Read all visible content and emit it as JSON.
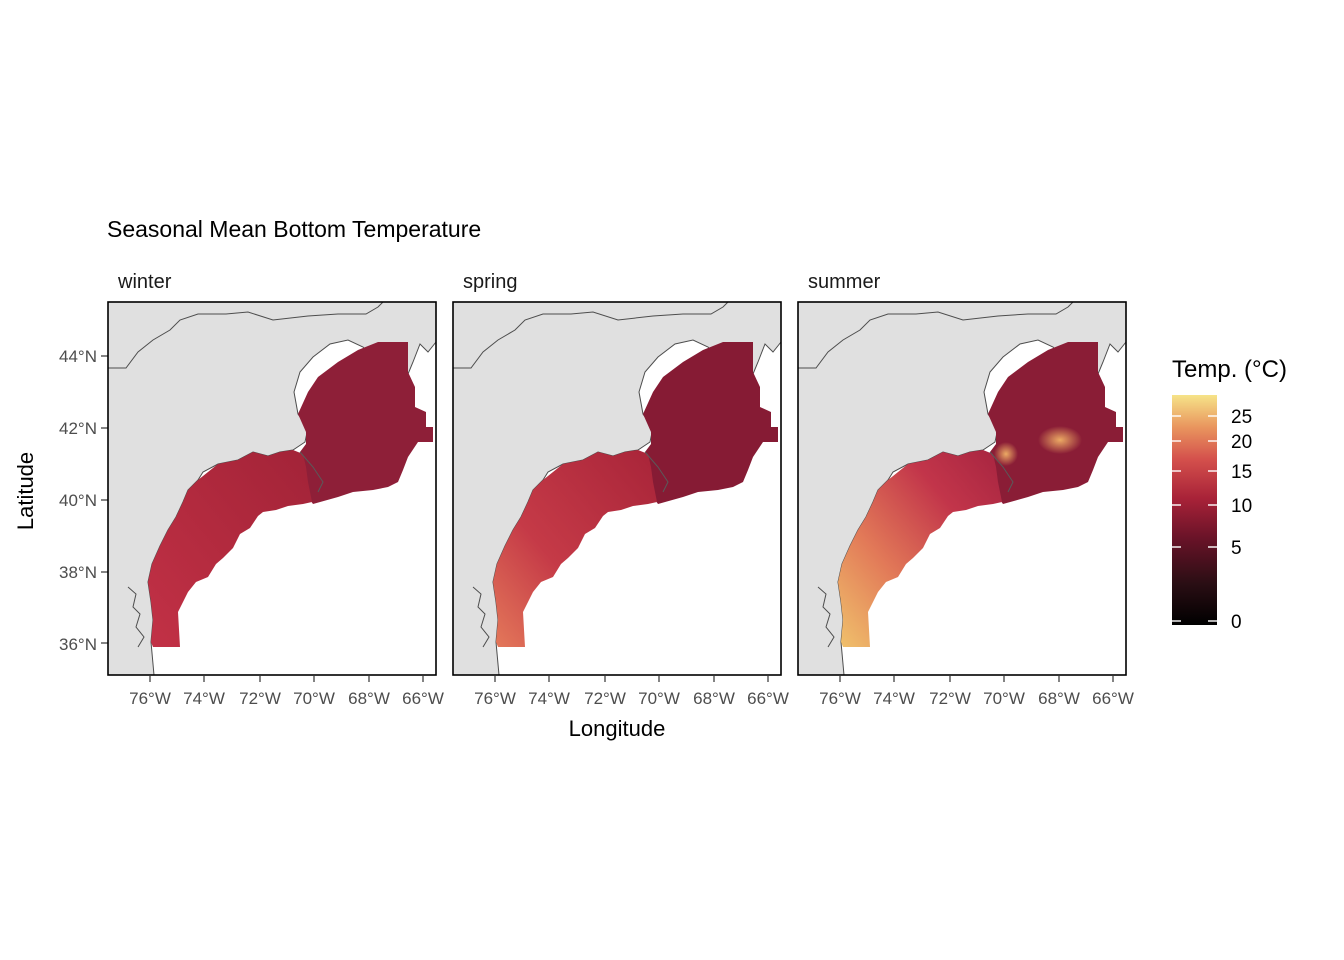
{
  "title": "Seasonal Mean Bottom Temperature",
  "axes": {
    "xlabel": "Longitude",
    "ylabel": "Latitude",
    "x_ticks": [
      "76°W",
      "74°W",
      "72°W",
      "70°W",
      "68°W",
      "66°W"
    ],
    "y_ticks": [
      "44°N",
      "42°N",
      "40°N",
      "38°N",
      "36°N"
    ]
  },
  "panels": [
    {
      "label": "winter"
    },
    {
      "label": "spring"
    },
    {
      "label": "summer"
    }
  ],
  "legend": {
    "title": "Temp. (°C)",
    "ticks": [
      "25",
      "20",
      "15",
      "10",
      "5",
      "0"
    ]
  },
  "colors": {
    "land": "#e0e0e0",
    "coast_line": "#4d4d4d",
    "temp_dark_red": "#8a1c36",
    "temp_red": "#b42a3b",
    "temp_light": "#e98d5b",
    "temp_pale": "#f6dd86"
  }
}
